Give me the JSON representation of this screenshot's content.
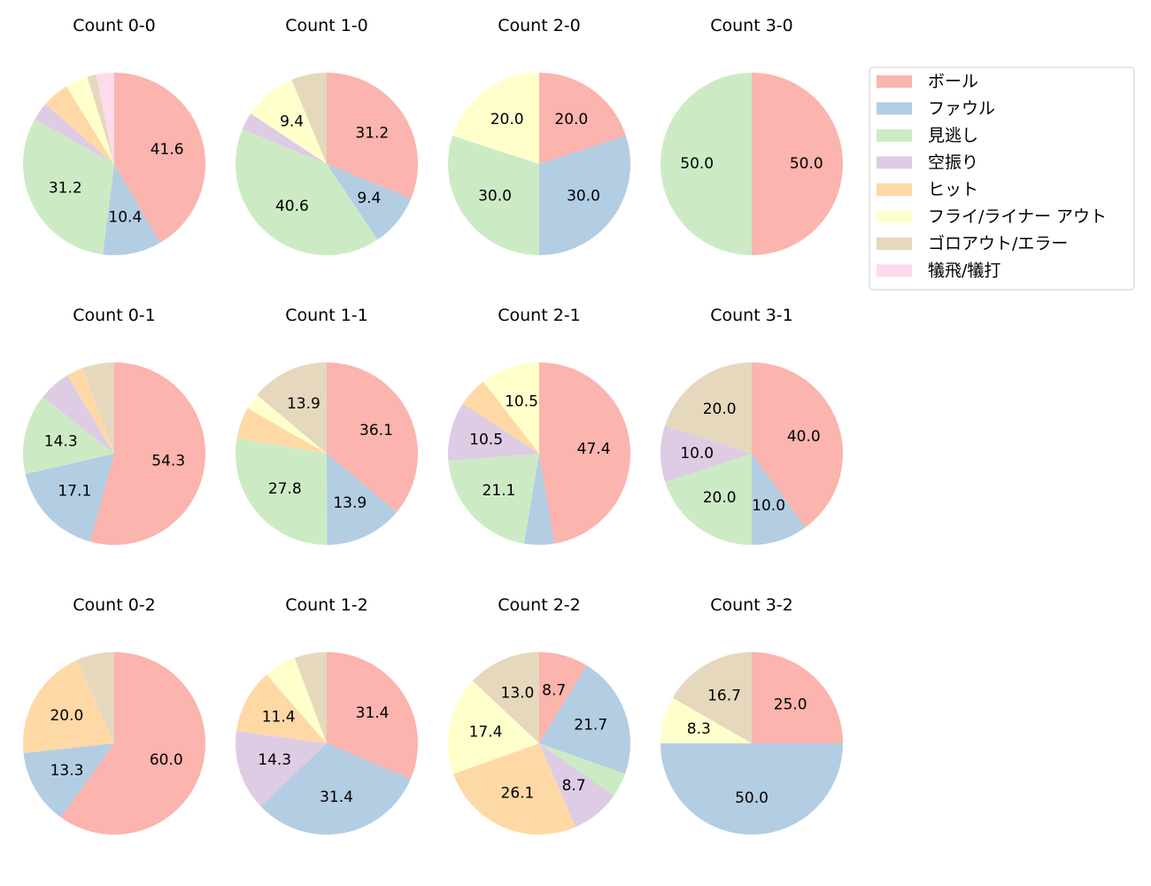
{
  "chart_data": {
    "type": "pie",
    "legend_position": "right",
    "categories": [
      "ボール",
      "ファウル",
      "見逃し",
      "空振り",
      "ヒット",
      "フライ/ライナー アウト",
      "ゴロアウト/エラー",
      "犠飛/犠打"
    ],
    "colors": [
      "#fbb4ae",
      "#b3cde3",
      "#ccebc5",
      "#decbe4",
      "#fed9a6",
      "#ffffcc",
      "#e5d8bd",
      "#fddaec"
    ],
    "charts": [
      {
        "title": "Count 0-0",
        "values": [
          41.6,
          10.4,
          31.2,
          3.2,
          4.8,
          4.0,
          1.6,
          3.2
        ]
      },
      {
        "title": "Count 1-0",
        "values": [
          31.2,
          9.4,
          40.6,
          3.1,
          0,
          9.4,
          6.3,
          0
        ]
      },
      {
        "title": "Count 2-0",
        "values": [
          20.0,
          30.0,
          30.0,
          0,
          0,
          20.0,
          0,
          0
        ]
      },
      {
        "title": "Count 3-0",
        "values": [
          50.0,
          0,
          50.0,
          0,
          0,
          0,
          0,
          0
        ]
      },
      {
        "title": "Count 0-1",
        "values": [
          54.3,
          17.1,
          14.3,
          5.7,
          2.9,
          0,
          5.7,
          0
        ]
      },
      {
        "title": "Count 1-1",
        "values": [
          36.1,
          13.9,
          27.8,
          0,
          5.6,
          2.8,
          13.9,
          0
        ]
      },
      {
        "title": "Count 2-1",
        "values": [
          47.4,
          5.3,
          21.1,
          10.5,
          5.3,
          10.5,
          0,
          0
        ]
      },
      {
        "title": "Count 3-1",
        "values": [
          40.0,
          10.0,
          20.0,
          10.0,
          0,
          0,
          20.0,
          0
        ]
      },
      {
        "title": "Count 0-2",
        "values": [
          60.0,
          13.3,
          0,
          0,
          20.0,
          0,
          6.7,
          0
        ]
      },
      {
        "title": "Count 1-2",
        "values": [
          31.4,
          31.4,
          0,
          14.3,
          11.4,
          5.7,
          5.7,
          0
        ]
      },
      {
        "title": "Count 2-2",
        "values": [
          8.7,
          21.7,
          4.3,
          8.7,
          26.1,
          17.4,
          13.0,
          0
        ]
      },
      {
        "title": "Count 3-2",
        "values": [
          25.0,
          50.0,
          0,
          0,
          0,
          8.3,
          16.7,
          0
        ]
      }
    ]
  }
}
